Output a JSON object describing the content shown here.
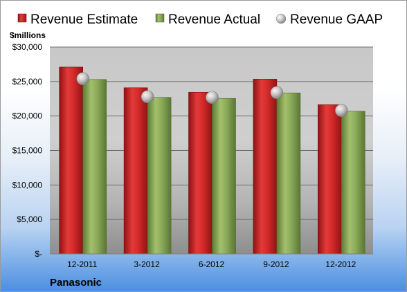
{
  "chart_data": {
    "type": "bar",
    "categories": [
      "12-2011",
      "3-2012",
      "6-2012",
      "9-2012",
      "12-2012"
    ],
    "series": [
      {
        "name": "Revenue Estimate",
        "kind": "bar",
        "color": "#d42a2a",
        "values": [
          27100,
          24100,
          23450,
          25350,
          21650
        ]
      },
      {
        "name": "Revenue Actual",
        "kind": "bar",
        "color": "#8cab5a",
        "values": [
          25300,
          22700,
          22550,
          23350,
          20700
        ]
      },
      {
        "name": "Revenue GAAP",
        "kind": "marker",
        "color": "#b8b8b8",
        "values": [
          25400,
          22800,
          22700,
          23400,
          20800
        ]
      }
    ],
    "ylabel": "$millions",
    "ylim": [
      0,
      30000
    ],
    "yticks": [
      0,
      5000,
      10000,
      15000,
      20000,
      25000,
      30000
    ],
    "ytick_labels": [
      "$-",
      "$5,000",
      "$10,000",
      "$15,000",
      "$20,000",
      "$25,000",
      "$30,000"
    ],
    "grid": true,
    "legend_position": "top"
  },
  "brand": "Panasonic"
}
